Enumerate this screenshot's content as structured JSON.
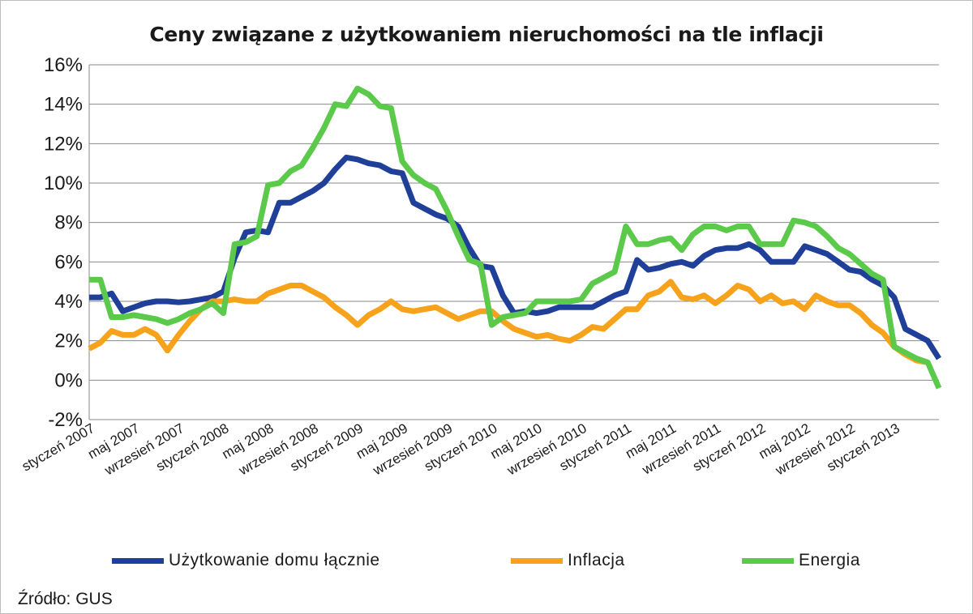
{
  "chart_data": {
    "type": "line",
    "title": "Ceny związane z użytkowaniem nieruchomości na tle inflacji",
    "xlabel": "",
    "ylabel": "",
    "ylim": [
      -2,
      16
    ],
    "yticks": [
      "-2%",
      "0%",
      "2%",
      "4%",
      "6%",
      "8%",
      "10%",
      "12%",
      "14%",
      "16%"
    ],
    "ytick_values": [
      -2,
      0,
      2,
      4,
      6,
      8,
      10,
      12,
      14,
      16
    ],
    "xtick_labels": [
      "styczeń 2007",
      "maj 2007",
      "wrzesień 2007",
      "styczeń 2008",
      "maj 2008",
      "wrzesień 2008",
      "styczeń 2009",
      "maj 2009",
      "wrzesień 2009",
      "styczeń 2010",
      "maj 2010",
      "wrzesień 2010",
      "styczeń 2011",
      "maj 2011",
      "wrzesień 2011",
      "styczeń 2012",
      "maj 2012",
      "wrzesień 2012",
      "styczeń 2013"
    ],
    "x_start": "styczeń 2007",
    "grid": true,
    "legend_position": "bottom",
    "series": [
      {
        "name": "Użytkowanie domu łącznie",
        "color": "#1f3f99",
        "values": [
          4.2,
          4.2,
          4.4,
          3.5,
          3.7,
          3.9,
          4.0,
          4.0,
          3.95,
          4.0,
          4.1,
          4.2,
          4.5,
          6.2,
          7.5,
          7.6,
          7.5,
          9.0,
          9.0,
          9.3,
          9.6,
          10.0,
          10.7,
          11.3,
          11.2,
          11.0,
          10.9,
          10.6,
          10.5,
          9.0,
          8.7,
          8.4,
          8.2,
          7.8,
          6.7,
          5.8,
          5.7,
          4.3,
          3.4,
          3.5,
          3.4,
          3.5,
          3.7,
          3.7,
          3.7,
          3.7,
          4.0,
          4.3,
          4.5,
          6.1,
          5.6,
          5.7,
          5.9,
          6.0,
          5.8,
          6.3,
          6.6,
          6.7,
          6.7,
          6.9,
          6.6,
          6.0,
          6.0,
          6.0,
          6.8,
          6.6,
          6.4,
          6.0,
          5.6,
          5.5,
          5.1,
          4.8,
          4.2,
          2.6,
          2.3,
          2.0,
          1.1
        ]
      },
      {
        "name": "Inflacja",
        "color": "#f7a21b",
        "values": [
          1.6,
          1.9,
          2.5,
          2.3,
          2.3,
          2.6,
          2.3,
          1.5,
          2.3,
          3.0,
          3.6,
          4.0,
          4.0,
          4.1,
          4.0,
          4.0,
          4.4,
          4.6,
          4.8,
          4.8,
          4.5,
          4.2,
          3.7,
          3.3,
          2.8,
          3.3,
          3.6,
          4.0,
          3.6,
          3.5,
          3.6,
          3.7,
          3.4,
          3.1,
          3.3,
          3.5,
          3.5,
          3.0,
          2.6,
          2.4,
          2.2,
          2.3,
          2.1,
          2.0,
          2.3,
          2.7,
          2.6,
          3.1,
          3.6,
          3.6,
          4.3,
          4.5,
          5.0,
          4.2,
          4.1,
          4.3,
          3.9,
          4.3,
          4.8,
          4.6,
          4.0,
          4.3,
          3.9,
          4.0,
          3.6,
          4.3,
          4.0,
          3.8,
          3.8,
          3.4,
          2.8,
          2.4,
          1.7,
          1.3,
          1.0,
          0.9
        ]
      },
      {
        "name": "Energia",
        "color": "#5bc94a",
        "values": [
          5.1,
          5.1,
          3.2,
          3.2,
          3.3,
          3.2,
          3.1,
          2.9,
          3.1,
          3.4,
          3.6,
          3.9,
          3.4,
          6.9,
          7.0,
          7.3,
          9.9,
          10.0,
          10.6,
          10.9,
          11.8,
          12.8,
          14.0,
          13.9,
          14.8,
          14.5,
          13.9,
          13.8,
          11.1,
          10.4,
          10.0,
          9.7,
          8.6,
          7.3,
          6.1,
          5.9,
          2.8,
          3.2,
          3.3,
          3.4,
          4.0,
          4.0,
          4.0,
          4.0,
          4.1,
          4.9,
          5.2,
          5.5,
          7.8,
          6.9,
          6.9,
          7.1,
          7.2,
          6.6,
          7.4,
          7.8,
          7.8,
          7.6,
          7.8,
          7.8,
          6.9,
          6.9,
          6.9,
          8.1,
          8.0,
          7.8,
          7.3,
          6.7,
          6.4,
          5.9,
          5.4,
          5.1,
          1.7,
          1.4,
          1.1,
          0.9,
          -0.4
        ]
      }
    ]
  },
  "legend": {
    "items": [
      {
        "label": "Użytkowanie domu łącznie",
        "color": "#1f3f99"
      },
      {
        "label": "Inflacja",
        "color": "#f7a21b"
      },
      {
        "label": "Energia",
        "color": "#5bc94a"
      }
    ]
  },
  "source": "Źródło: GUS"
}
